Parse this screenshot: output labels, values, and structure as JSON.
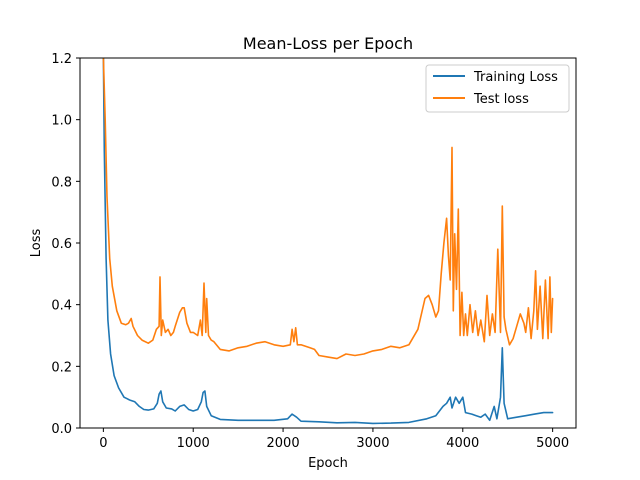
{
  "chart_data": {
    "type": "line",
    "title": "Mean-Loss per Epoch",
    "xlabel": "Epoch",
    "ylabel": "Loss",
    "xlim": [
      -260,
      5260
    ],
    "ylim": [
      0,
      1.2
    ],
    "xticks": [
      0,
      1000,
      2000,
      3000,
      4000,
      5000
    ],
    "yticks": [
      0.0,
      0.2,
      0.4,
      0.6,
      0.8,
      1.0,
      1.2
    ],
    "grid": false,
    "legend_position": "top-right",
    "series": [
      {
        "name": "Training Loss",
        "color": "#1f77b4",
        "points": [
          [
            0,
            1.2
          ],
          [
            10,
            0.9
          ],
          [
            30,
            0.55
          ],
          [
            50,
            0.35
          ],
          [
            80,
            0.24
          ],
          [
            120,
            0.17
          ],
          [
            170,
            0.13
          ],
          [
            230,
            0.1
          ],
          [
            300,
            0.09
          ],
          [
            350,
            0.085
          ],
          [
            400,
            0.07
          ],
          [
            450,
            0.06
          ],
          [
            500,
            0.058
          ],
          [
            560,
            0.062
          ],
          [
            600,
            0.08
          ],
          [
            620,
            0.11
          ],
          [
            640,
            0.12
          ],
          [
            660,
            0.085
          ],
          [
            700,
            0.065
          ],
          [
            760,
            0.062
          ],
          [
            800,
            0.055
          ],
          [
            850,
            0.07
          ],
          [
            900,
            0.075
          ],
          [
            950,
            0.06
          ],
          [
            1000,
            0.055
          ],
          [
            1050,
            0.06
          ],
          [
            1090,
            0.085
          ],
          [
            1110,
            0.115
          ],
          [
            1130,
            0.12
          ],
          [
            1150,
            0.07
          ],
          [
            1200,
            0.04
          ],
          [
            1300,
            0.028
          ],
          [
            1500,
            0.025
          ],
          [
            1700,
            0.025
          ],
          [
            1900,
            0.025
          ],
          [
            2050,
            0.03
          ],
          [
            2100,
            0.045
          ],
          [
            2150,
            0.035
          ],
          [
            2200,
            0.022
          ],
          [
            2400,
            0.02
          ],
          [
            2600,
            0.017
          ],
          [
            2800,
            0.018
          ],
          [
            3000,
            0.015
          ],
          [
            3200,
            0.016
          ],
          [
            3400,
            0.018
          ],
          [
            3600,
            0.03
          ],
          [
            3700,
            0.04
          ],
          [
            3780,
            0.07
          ],
          [
            3820,
            0.08
          ],
          [
            3860,
            0.1
          ],
          [
            3880,
            0.065
          ],
          [
            3920,
            0.1
          ],
          [
            3960,
            0.08
          ],
          [
            4000,
            0.1
          ],
          [
            4030,
            0.05
          ],
          [
            4100,
            0.045
          ],
          [
            4150,
            0.04
          ],
          [
            4200,
            0.035
          ],
          [
            4250,
            0.045
          ],
          [
            4300,
            0.025
          ],
          [
            4350,
            0.07
          ],
          [
            4380,
            0.03
          ],
          [
            4420,
            0.1
          ],
          [
            4440,
            0.26
          ],
          [
            4460,
            0.08
          ],
          [
            4500,
            0.03
          ],
          [
            4600,
            0.035
          ],
          [
            4700,
            0.04
          ],
          [
            4800,
            0.045
          ],
          [
            4900,
            0.05
          ],
          [
            5000,
            0.05
          ]
        ]
      },
      {
        "name": "Test loss",
        "color": "#ff7f0e",
        "points": [
          [
            0,
            1.2
          ],
          [
            20,
            1.0
          ],
          [
            40,
            0.75
          ],
          [
            70,
            0.55
          ],
          [
            100,
            0.46
          ],
          [
            150,
            0.38
          ],
          [
            200,
            0.34
          ],
          [
            250,
            0.335
          ],
          [
            280,
            0.34
          ],
          [
            310,
            0.355
          ],
          [
            330,
            0.33
          ],
          [
            380,
            0.3
          ],
          [
            430,
            0.285
          ],
          [
            500,
            0.275
          ],
          [
            550,
            0.285
          ],
          [
            590,
            0.32
          ],
          [
            620,
            0.33
          ],
          [
            630,
            0.49
          ],
          [
            645,
            0.3
          ],
          [
            660,
            0.35
          ],
          [
            690,
            0.31
          ],
          [
            720,
            0.32
          ],
          [
            750,
            0.3
          ],
          [
            780,
            0.31
          ],
          [
            800,
            0.33
          ],
          [
            850,
            0.375
          ],
          [
            880,
            0.39
          ],
          [
            900,
            0.39
          ],
          [
            930,
            0.34
          ],
          [
            970,
            0.31
          ],
          [
            1000,
            0.31
          ],
          [
            1050,
            0.3
          ],
          [
            1080,
            0.35
          ],
          [
            1100,
            0.3
          ],
          [
            1120,
            0.47
          ],
          [
            1140,
            0.31
          ],
          [
            1150,
            0.42
          ],
          [
            1170,
            0.3
          ],
          [
            1200,
            0.285
          ],
          [
            1230,
            0.28
          ],
          [
            1300,
            0.255
          ],
          [
            1400,
            0.25
          ],
          [
            1500,
            0.26
          ],
          [
            1600,
            0.265
          ],
          [
            1700,
            0.275
          ],
          [
            1800,
            0.28
          ],
          [
            1900,
            0.27
          ],
          [
            2000,
            0.265
          ],
          [
            2080,
            0.27
          ],
          [
            2100,
            0.32
          ],
          [
            2120,
            0.28
          ],
          [
            2140,
            0.325
          ],
          [
            2160,
            0.27
          ],
          [
            2200,
            0.27
          ],
          [
            2300,
            0.26
          ],
          [
            2350,
            0.255
          ],
          [
            2400,
            0.235
          ],
          [
            2500,
            0.23
          ],
          [
            2600,
            0.225
          ],
          [
            2700,
            0.24
          ],
          [
            2800,
            0.235
          ],
          [
            2900,
            0.24
          ],
          [
            3000,
            0.25
          ],
          [
            3100,
            0.255
          ],
          [
            3200,
            0.265
          ],
          [
            3300,
            0.26
          ],
          [
            3400,
            0.27
          ],
          [
            3500,
            0.32
          ],
          [
            3580,
            0.42
          ],
          [
            3620,
            0.43
          ],
          [
            3660,
            0.4
          ],
          [
            3700,
            0.36
          ],
          [
            3730,
            0.38
          ],
          [
            3760,
            0.5
          ],
          [
            3790,
            0.6
          ],
          [
            3820,
            0.68
          ],
          [
            3840,
            0.56
          ],
          [
            3860,
            0.48
          ],
          [
            3880,
            0.91
          ],
          [
            3895,
            0.38
          ],
          [
            3910,
            0.63
          ],
          [
            3930,
            0.45
          ],
          [
            3950,
            0.71
          ],
          [
            3970,
            0.3
          ],
          [
            3990,
            0.44
          ],
          [
            4010,
            0.3
          ],
          [
            4030,
            0.37
          ],
          [
            4050,
            0.3
          ],
          [
            4080,
            0.4
          ],
          [
            4110,
            0.31
          ],
          [
            4140,
            0.38
          ],
          [
            4170,
            0.3
          ],
          [
            4200,
            0.35
          ],
          [
            4240,
            0.28
          ],
          [
            4270,
            0.43
          ],
          [
            4300,
            0.3
          ],
          [
            4330,
            0.37
          ],
          [
            4360,
            0.31
          ],
          [
            4390,
            0.58
          ],
          [
            4420,
            0.31
          ],
          [
            4440,
            0.72
          ],
          [
            4460,
            0.36
          ],
          [
            4480,
            0.32
          ],
          [
            4520,
            0.27
          ],
          [
            4560,
            0.29
          ],
          [
            4600,
            0.33
          ],
          [
            4640,
            0.37
          ],
          [
            4680,
            0.34
          ],
          [
            4700,
            0.31
          ],
          [
            4730,
            0.39
          ],
          [
            4760,
            0.29
          ],
          [
            4790,
            0.38
          ],
          [
            4810,
            0.51
          ],
          [
            4830,
            0.32
          ],
          [
            4860,
            0.46
          ],
          [
            4890,
            0.29
          ],
          [
            4920,
            0.48
          ],
          [
            4950,
            0.29
          ],
          [
            4970,
            0.49
          ],
          [
            4985,
            0.31
          ],
          [
            5000,
            0.42
          ]
        ]
      }
    ]
  }
}
